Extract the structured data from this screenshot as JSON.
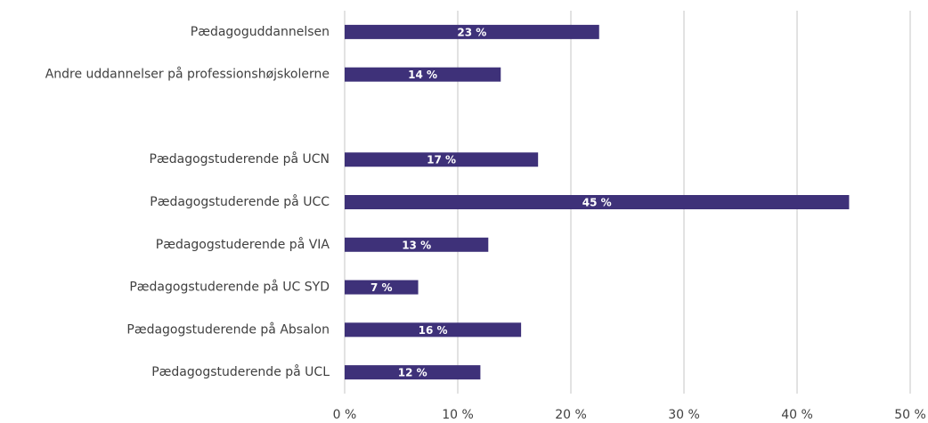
{
  "chart_data": {
    "type": "barh",
    "categories": [
      "Pædagoguddannelsen",
      "Andre uddannelser på professionshøjskolerne",
      null,
      "Pædagogstuderende på UCN",
      "Pædagogstuderende på UCC",
      "Pædagogstuderende på VIA",
      "Pædagogstuderende på UC SYD",
      "Pædagogstuderende på Absalon",
      "Pædagogstuderende på UCL"
    ],
    "values": [
      22.5,
      13.8,
      null,
      17.1,
      44.6,
      12.7,
      6.5,
      15.6,
      12.0
    ],
    "value_labels": [
      "23 %",
      "14 %",
      null,
      "17 %",
      "45 %",
      "13 %",
      "7 %",
      "16 %",
      "12 %"
    ],
    "color": "#3e3179",
    "xlim": [
      0,
      50
    ],
    "xticks": [
      {
        "value": 0,
        "label": "0 %"
      },
      {
        "value": 10,
        "label": "10 %"
      },
      {
        "value": 20,
        "label": "20 %"
      },
      {
        "value": 30,
        "label": "30 %"
      },
      {
        "value": 40,
        "label": "40 %"
      },
      {
        "value": 50,
        "label": "50 %"
      }
    ],
    "grid": true
  }
}
